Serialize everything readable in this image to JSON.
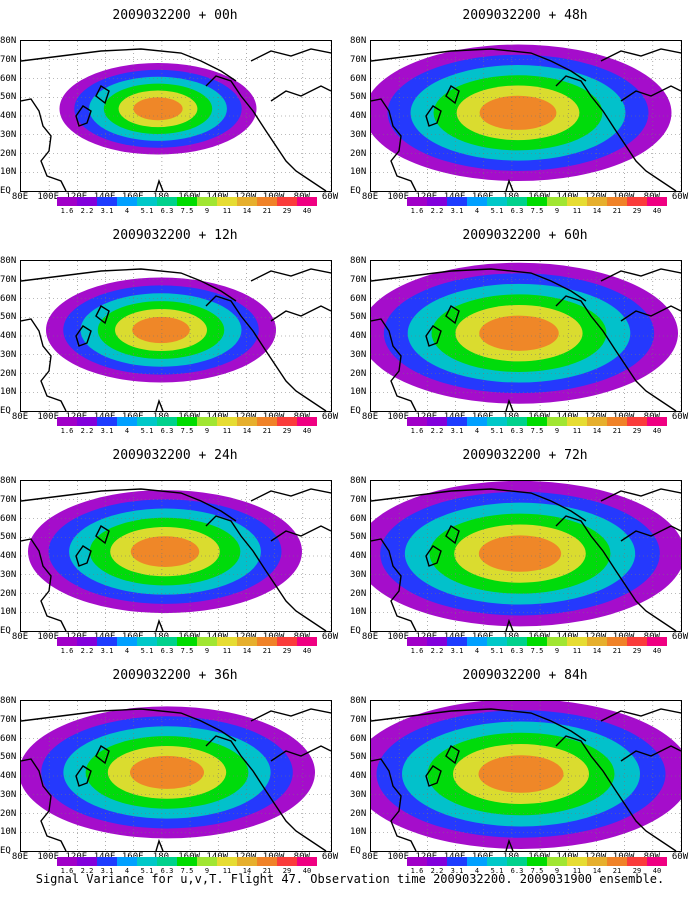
{
  "panels": [
    {
      "title": "2009032200 + 00h",
      "coverage": 0.35
    },
    {
      "title": "2009032200 + 48h",
      "coverage": 0.85
    },
    {
      "title": "2009032200 + 12h",
      "coverage": 0.5
    },
    {
      "title": "2009032200 + 60h",
      "coverage": 0.9
    },
    {
      "title": "2009032200 + 24h",
      "coverage": 0.7
    },
    {
      "title": "2009032200 + 72h",
      "coverage": 0.95
    },
    {
      "title": "2009032200 + 36h",
      "coverage": 0.8
    },
    {
      "title": "2009032200 + 84h",
      "coverage": 1.0
    }
  ],
  "lat_labels": [
    "80N",
    "70N",
    "60N",
    "50N",
    "40N",
    "30N",
    "20N",
    "10N",
    "EQ"
  ],
  "lon_labels": [
    "80E",
    "100E",
    "120E",
    "140E",
    "160E",
    "180",
    "160W",
    "140W",
    "120W",
    "100W",
    "80W",
    "60W"
  ],
  "colorbar": {
    "colors": [
      "#a000c8",
      "#8200dc",
      "#1e3cff",
      "#00a0ff",
      "#00c8c8",
      "#00d28c",
      "#00dc00",
      "#a0e632",
      "#e6dc32",
      "#e6af2d",
      "#f08228",
      "#fa3c3c",
      "#f00082"
    ],
    "labels": [
      "1.6",
      "2.2",
      "3.1",
      "4",
      "5.1",
      "6.3",
      "7.5",
      "9",
      "11",
      "14",
      "21",
      "29",
      "40"
    ]
  },
  "caption": "Signal Variance for u,v,T. Flight 47. Observation time 2009032200. 2009031900 ensemble."
}
